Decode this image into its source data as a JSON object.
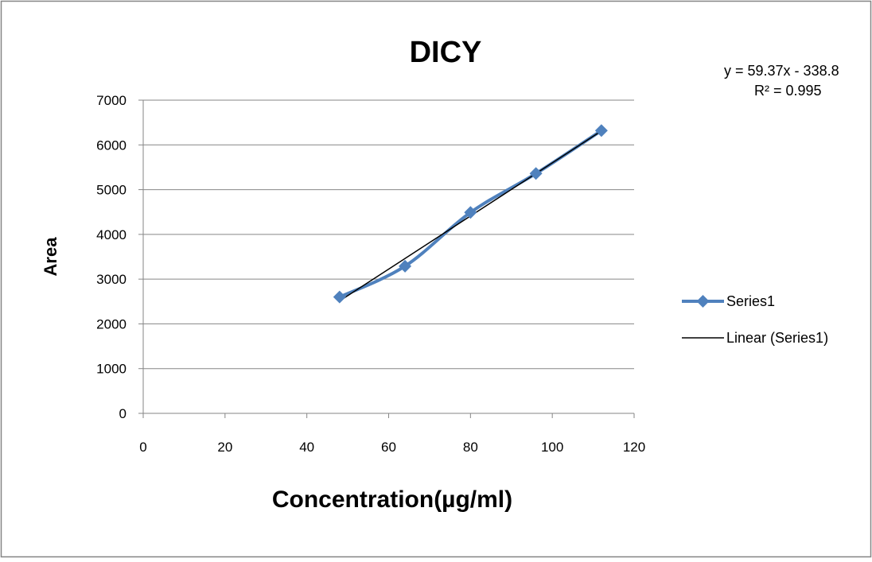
{
  "chart_data": {
    "type": "scatter",
    "title": "DICY",
    "xlabel": "Concentration(µg/ml)",
    "ylabel": "Area",
    "xlim": [
      0,
      120
    ],
    "ylim": [
      0,
      7000
    ],
    "x_ticks": [
      "0",
      "20",
      "40",
      "60",
      "80",
      "100",
      "120"
    ],
    "y_ticks": [
      "0",
      "1000",
      "2000",
      "3000",
      "4000",
      "5000",
      "6000",
      "7000"
    ],
    "grid": "horizontal",
    "legend_position": "right",
    "series": [
      {
        "name": "Series1",
        "color": "#4F81BD",
        "marker": "diamond",
        "line": "smooth",
        "x": [
          48,
          64,
          80,
          96,
          112
        ],
        "y": [
          2600,
          3290,
          4490,
          5360,
          6320
        ]
      }
    ],
    "trendline": {
      "name": "Linear (Series1)",
      "color": "#000000",
      "slope": 59.37,
      "intercept": -338.8,
      "x_range": [
        48,
        112
      ],
      "equation_label": "y = 59.37x - 338.8",
      "r2_label": "R² = 0.995"
    }
  }
}
